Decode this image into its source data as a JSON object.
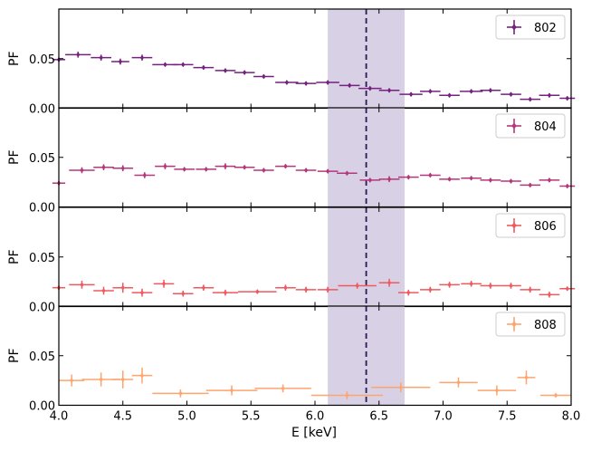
{
  "chart_data": {
    "type": "scatter",
    "xlabel": "E [keV]",
    "ylabel": "PF",
    "xlim": [
      4.0,
      8.0
    ],
    "ylim": [
      0.0,
      0.1
    ],
    "x_ticks": [
      4.0,
      4.5,
      5.0,
      5.5,
      6.0,
      6.5,
      7.0,
      7.5,
      8.0
    ],
    "x_tick_labels": [
      "4.0",
      "4.5",
      "5.0",
      "5.5",
      "6.0",
      "6.5",
      "7.0",
      "7.5",
      "8.0"
    ],
    "y_ticks": [
      0.0,
      0.05
    ],
    "y_tick_labels": [
      "0.00",
      "0.05"
    ],
    "band": [
      6.1,
      6.7
    ],
    "band_color": "#d8d0e4",
    "vline": 6.4,
    "vline_color": "#2a1a55",
    "panels": [
      {
        "legend": "802",
        "color": "#76217f",
        "points": [
          {
            "x": 4.0,
            "xerr": 0.05,
            "y": 0.049,
            "yerr": 0.002
          },
          {
            "x": 4.15,
            "xerr": 0.1,
            "y": 0.054,
            "yerr": 0.003
          },
          {
            "x": 4.33,
            "xerr": 0.08,
            "y": 0.051,
            "yerr": 0.003
          },
          {
            "x": 4.48,
            "xerr": 0.07,
            "y": 0.047,
            "yerr": 0.003
          },
          {
            "x": 4.65,
            "xerr": 0.08,
            "y": 0.051,
            "yerr": 0.003
          },
          {
            "x": 4.83,
            "xerr": 0.1,
            "y": 0.044,
            "yerr": 0.002
          },
          {
            "x": 4.97,
            "xerr": 0.08,
            "y": 0.044,
            "yerr": 0.002
          },
          {
            "x": 5.13,
            "xerr": 0.08,
            "y": 0.041,
            "yerr": 0.002
          },
          {
            "x": 5.3,
            "xerr": 0.08,
            "y": 0.038,
            "yerr": 0.002
          },
          {
            "x": 5.45,
            "xerr": 0.08,
            "y": 0.036,
            "yerr": 0.002
          },
          {
            "x": 5.6,
            "xerr": 0.08,
            "y": 0.032,
            "yerr": 0.002
          },
          {
            "x": 5.78,
            "xerr": 0.09,
            "y": 0.026,
            "yerr": 0.002
          },
          {
            "x": 5.93,
            "xerr": 0.08,
            "y": 0.025,
            "yerr": 0.002
          },
          {
            "x": 6.1,
            "xerr": 0.09,
            "y": 0.026,
            "yerr": 0.002
          },
          {
            "x": 6.27,
            "xerr": 0.08,
            "y": 0.023,
            "yerr": 0.002
          },
          {
            "x": 6.43,
            "xerr": 0.09,
            "y": 0.02,
            "yerr": 0.002
          },
          {
            "x": 6.58,
            "xerr": 0.08,
            "y": 0.018,
            "yerr": 0.002
          },
          {
            "x": 6.75,
            "xerr": 0.09,
            "y": 0.014,
            "yerr": 0.002
          },
          {
            "x": 6.9,
            "xerr": 0.08,
            "y": 0.017,
            "yerr": 0.002
          },
          {
            "x": 7.05,
            "xerr": 0.08,
            "y": 0.013,
            "yerr": 0.002
          },
          {
            "x": 7.22,
            "xerr": 0.09,
            "y": 0.017,
            "yerr": 0.002
          },
          {
            "x": 7.37,
            "xerr": 0.08,
            "y": 0.018,
            "yerr": 0.002
          },
          {
            "x": 7.53,
            "xerr": 0.08,
            "y": 0.014,
            "yerr": 0.002
          },
          {
            "x": 7.68,
            "xerr": 0.08,
            "y": 0.009,
            "yerr": 0.002
          },
          {
            "x": 7.83,
            "xerr": 0.08,
            "y": 0.013,
            "yerr": 0.002
          },
          {
            "x": 7.97,
            "xerr": 0.06,
            "y": 0.01,
            "yerr": 0.002
          }
        ]
      },
      {
        "legend": "804",
        "color": "#b5367a",
        "points": [
          {
            "x": 4.0,
            "xerr": 0.05,
            "y": 0.024,
            "yerr": 0.002
          },
          {
            "x": 4.18,
            "xerr": 0.1,
            "y": 0.037,
            "yerr": 0.003
          },
          {
            "x": 4.35,
            "xerr": 0.08,
            "y": 0.04,
            "yerr": 0.003
          },
          {
            "x": 4.5,
            "xerr": 0.08,
            "y": 0.039,
            "yerr": 0.003
          },
          {
            "x": 4.67,
            "xerr": 0.08,
            "y": 0.032,
            "yerr": 0.003
          },
          {
            "x": 4.83,
            "xerr": 0.08,
            "y": 0.041,
            "yerr": 0.003
          },
          {
            "x": 4.98,
            "xerr": 0.08,
            "y": 0.038,
            "yerr": 0.002
          },
          {
            "x": 5.15,
            "xerr": 0.08,
            "y": 0.038,
            "yerr": 0.002
          },
          {
            "x": 5.3,
            "xerr": 0.08,
            "y": 0.041,
            "yerr": 0.003
          },
          {
            "x": 5.45,
            "xerr": 0.08,
            "y": 0.04,
            "yerr": 0.002
          },
          {
            "x": 5.6,
            "xerr": 0.08,
            "y": 0.037,
            "yerr": 0.002
          },
          {
            "x": 5.77,
            "xerr": 0.08,
            "y": 0.041,
            "yerr": 0.002
          },
          {
            "x": 5.93,
            "xerr": 0.08,
            "y": 0.037,
            "yerr": 0.002
          },
          {
            "x": 6.1,
            "xerr": 0.08,
            "y": 0.036,
            "yerr": 0.002
          },
          {
            "x": 6.25,
            "xerr": 0.08,
            "y": 0.034,
            "yerr": 0.002
          },
          {
            "x": 6.43,
            "xerr": 0.08,
            "y": 0.027,
            "yerr": 0.002
          },
          {
            "x": 6.58,
            "xerr": 0.08,
            "y": 0.028,
            "yerr": 0.003
          },
          {
            "x": 6.73,
            "xerr": 0.08,
            "y": 0.03,
            "yerr": 0.002
          },
          {
            "x": 6.9,
            "xerr": 0.08,
            "y": 0.032,
            "yerr": 0.002
          },
          {
            "x": 7.05,
            "xerr": 0.08,
            "y": 0.028,
            "yerr": 0.002
          },
          {
            "x": 7.22,
            "xerr": 0.08,
            "y": 0.029,
            "yerr": 0.002
          },
          {
            "x": 7.37,
            "xerr": 0.08,
            "y": 0.027,
            "yerr": 0.002
          },
          {
            "x": 7.53,
            "xerr": 0.08,
            "y": 0.026,
            "yerr": 0.002
          },
          {
            "x": 7.68,
            "xerr": 0.08,
            "y": 0.022,
            "yerr": 0.002
          },
          {
            "x": 7.83,
            "xerr": 0.08,
            "y": 0.027,
            "yerr": 0.002
          },
          {
            "x": 7.97,
            "xerr": 0.06,
            "y": 0.021,
            "yerr": 0.002
          }
        ]
      },
      {
        "legend": "806",
        "color": "#ee5a5f",
        "points": [
          {
            "x": 4.0,
            "xerr": 0.05,
            "y": 0.019,
            "yerr": 0.002
          },
          {
            "x": 4.18,
            "xerr": 0.1,
            "y": 0.022,
            "yerr": 0.004
          },
          {
            "x": 4.35,
            "xerr": 0.08,
            "y": 0.016,
            "yerr": 0.004
          },
          {
            "x": 4.5,
            "xerr": 0.08,
            "y": 0.019,
            "yerr": 0.005
          },
          {
            "x": 4.65,
            "xerr": 0.08,
            "y": 0.014,
            "yerr": 0.004
          },
          {
            "x": 4.82,
            "xerr": 0.08,
            "y": 0.023,
            "yerr": 0.004
          },
          {
            "x": 4.97,
            "xerr": 0.08,
            "y": 0.013,
            "yerr": 0.003
          },
          {
            "x": 5.13,
            "xerr": 0.08,
            "y": 0.019,
            "yerr": 0.003
          },
          {
            "x": 5.3,
            "xerr": 0.1,
            "y": 0.014,
            "yerr": 0.003
          },
          {
            "x": 5.55,
            "xerr": 0.15,
            "y": 0.015,
            "yerr": 0.002
          },
          {
            "x": 5.77,
            "xerr": 0.08,
            "y": 0.019,
            "yerr": 0.003
          },
          {
            "x": 5.93,
            "xerr": 0.08,
            "y": 0.017,
            "yerr": 0.003
          },
          {
            "x": 6.1,
            "xerr": 0.08,
            "y": 0.017,
            "yerr": 0.003
          },
          {
            "x": 6.33,
            "xerr": 0.15,
            "y": 0.021,
            "yerr": 0.003
          },
          {
            "x": 6.58,
            "xerr": 0.08,
            "y": 0.024,
            "yerr": 0.004
          },
          {
            "x": 6.73,
            "xerr": 0.08,
            "y": 0.014,
            "yerr": 0.003
          },
          {
            "x": 6.9,
            "xerr": 0.08,
            "y": 0.017,
            "yerr": 0.003
          },
          {
            "x": 7.05,
            "xerr": 0.08,
            "y": 0.022,
            "yerr": 0.003
          },
          {
            "x": 7.22,
            "xerr": 0.08,
            "y": 0.023,
            "yerr": 0.003
          },
          {
            "x": 7.37,
            "xerr": 0.08,
            "y": 0.021,
            "yerr": 0.003
          },
          {
            "x": 7.53,
            "xerr": 0.08,
            "y": 0.021,
            "yerr": 0.003
          },
          {
            "x": 7.68,
            "xerr": 0.08,
            "y": 0.017,
            "yerr": 0.003
          },
          {
            "x": 7.83,
            "xerr": 0.08,
            "y": 0.012,
            "yerr": 0.003
          },
          {
            "x": 7.97,
            "xerr": 0.06,
            "y": 0.018,
            "yerr": 0.002
          }
        ]
      },
      {
        "legend": "808",
        "color": "#fda56d",
        "points": [
          {
            "x": 4.1,
            "xerr": 0.1,
            "y": 0.025,
            "yerr": 0.006
          },
          {
            "x": 4.33,
            "xerr": 0.15,
            "y": 0.026,
            "yerr": 0.007
          },
          {
            "x": 4.5,
            "xerr": 0.08,
            "y": 0.026,
            "yerr": 0.009
          },
          {
            "x": 4.65,
            "xerr": 0.08,
            "y": 0.03,
            "yerr": 0.008
          },
          {
            "x": 4.95,
            "xerr": 0.22,
            "y": 0.012,
            "yerr": 0.004
          },
          {
            "x": 5.35,
            "xerr": 0.2,
            "y": 0.015,
            "yerr": 0.005
          },
          {
            "x": 5.75,
            "xerr": 0.22,
            "y": 0.017,
            "yerr": 0.004
          },
          {
            "x": 6.25,
            "xerr": 0.28,
            "y": 0.01,
            "yerr": 0.004
          },
          {
            "x": 6.67,
            "xerr": 0.23,
            "y": 0.018,
            "yerr": 0.005
          },
          {
            "x": 7.12,
            "xerr": 0.15,
            "y": 0.023,
            "yerr": 0.005
          },
          {
            "x": 7.42,
            "xerr": 0.15,
            "y": 0.015,
            "yerr": 0.005
          },
          {
            "x": 7.65,
            "xerr": 0.07,
            "y": 0.028,
            "yerr": 0.007
          },
          {
            "x": 7.88,
            "xerr": 0.12,
            "y": 0.01,
            "yerr": 0.002
          }
        ]
      }
    ]
  }
}
